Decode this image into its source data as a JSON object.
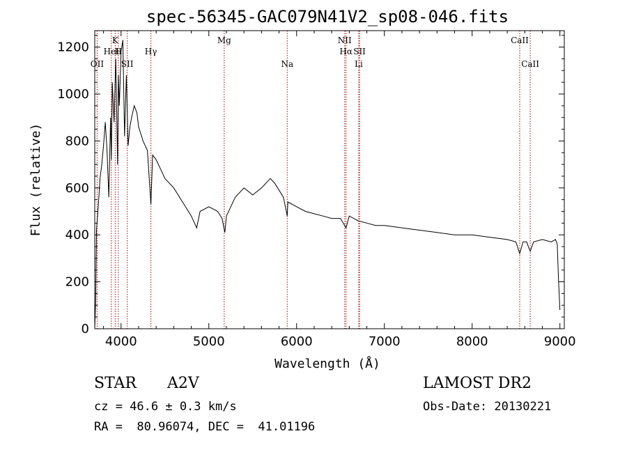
{
  "chart_data": {
    "type": "line",
    "title": "spec-56345-GAC079N41V2_sp08-046.fits",
    "xlabel": "Wavelength (Å)",
    "ylabel": "Flux (relative)",
    "xlim": [
      3700,
      9050
    ],
    "ylim": [
      0,
      1270
    ],
    "x_ticks": [
      4000,
      5000,
      6000,
      7000,
      8000,
      9000
    ],
    "y_ticks": [
      0,
      200,
      400,
      600,
      800,
      1000,
      1200
    ],
    "grid": false,
    "series": [
      {
        "color": "#000000",
        "x": [
          3700,
          3710,
          3720,
          3740,
          3760,
          3780,
          3800,
          3820,
          3840,
          3860,
          3880,
          3890,
          3900,
          3920,
          3940,
          3960,
          3970,
          3980,
          4000,
          4020,
          4040,
          4060,
          4080,
          4101,
          4120,
          4150,
          4180,
          4200,
          4250,
          4300,
          4340,
          4360,
          4400,
          4450,
          4500,
          4600,
          4700,
          4800,
          4861,
          4900,
          5000,
          5100,
          5150,
          5183,
          5200,
          5300,
          5400,
          5500,
          5600,
          5700,
          5750,
          5800,
          5850,
          5893,
          5900,
          6000,
          6100,
          6200,
          6300,
          6400,
          6500,
          6563,
          6600,
          6700,
          6800,
          6900,
          7000,
          7200,
          7400,
          7600,
          7800,
          8000,
          8200,
          8400,
          8498,
          8542,
          8580,
          8620,
          8662,
          8700,
          8800,
          8900,
          8950,
          8970,
          8985,
          9000
        ],
        "values": [
          0,
          120,
          420,
          520,
          640,
          700,
          780,
          880,
          760,
          560,
          900,
          720,
          1050,
          880,
          1150,
          700,
          1080,
          950,
          1180,
          1230,
          820,
          1080,
          780,
          860,
          900,
          950,
          920,
          860,
          800,
          760,
          530,
          740,
          720,
          680,
          640,
          600,
          540,
          480,
          430,
          500,
          520,
          500,
          470,
          410,
          480,
          560,
          600,
          570,
          600,
          640,
          620,
          590,
          560,
          480,
          540,
          520,
          500,
          490,
          480,
          470,
          470,
          430,
          480,
          460,
          450,
          440,
          440,
          430,
          420,
          410,
          400,
          400,
          390,
          380,
          370,
          320,
          370,
          370,
          330,
          370,
          380,
          370,
          380,
          360,
          200,
          80
        ]
      }
    ],
    "line_markers": [
      {
        "label": "OII",
        "x": 3727,
        "level": 3
      },
      {
        "label": "K",
        "x": 3933,
        "level": 1
      },
      {
        "label": "HeI",
        "x": 3889,
        "level": 2
      },
      {
        "label": "H",
        "x": 3968,
        "level": 2
      },
      {
        "label": "SII",
        "x": 4070,
        "level": 3
      },
      {
        "label": "Hγ",
        "x": 4340,
        "level": 2
      },
      {
        "label": "Mg",
        "x": 5175,
        "level": 1
      },
      {
        "label": "Na",
        "x": 5893,
        "level": 3
      },
      {
        "label": "NII",
        "x": 6548,
        "level": 1
      },
      {
        "label": "Hα",
        "x": 6563,
        "level": 2
      },
      {
        "label": "SII",
        "x": 6717,
        "level": 2
      },
      {
        "label": "Li",
        "x": 6708,
        "level": 3
      },
      {
        "label": "CaII",
        "x": 8542,
        "level": 1
      },
      {
        "label": "CaII",
        "x": 8662,
        "level": 3
      }
    ],
    "line_marker_color": "#aa0000"
  },
  "info": {
    "object_class": "STAR",
    "subclass": "A2V",
    "survey": "LAMOST DR2",
    "cz": "cz = 46.6 ± 0.3 km/s",
    "obs_date": "Obs-Date: 20130221",
    "coords": "RA =  80.96074, DEC =  41.01196"
  }
}
